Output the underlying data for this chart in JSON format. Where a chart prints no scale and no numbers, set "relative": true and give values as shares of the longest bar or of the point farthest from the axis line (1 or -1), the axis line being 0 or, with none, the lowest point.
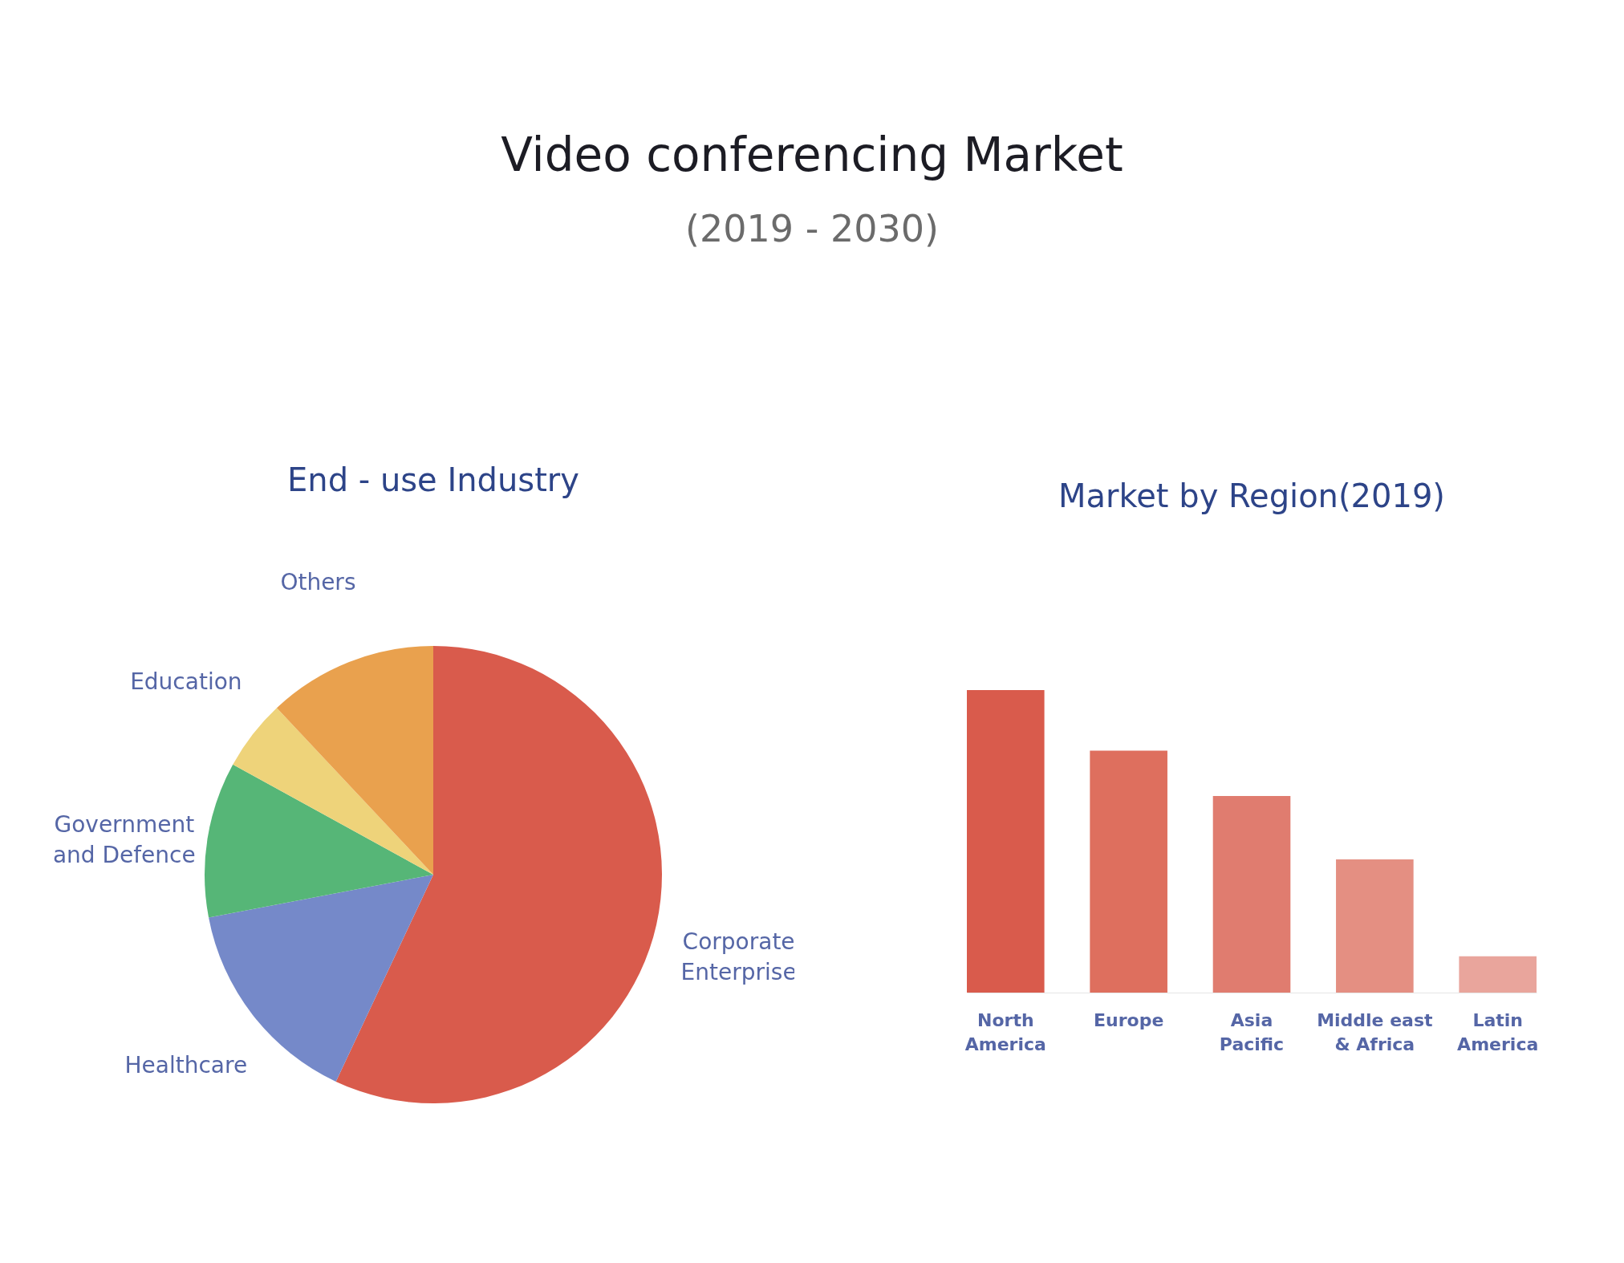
{
  "chart_data": [
    {
      "type": "other",
      "title": "Video conferencing Market",
      "subtitle": "(2019 - 2030)"
    },
    {
      "type": "pie",
      "title": "End - use Industry",
      "categories": [
        "Corporate Enterprise",
        "Healthcare",
        "Government and Defence",
        "Education",
        "Others"
      ],
      "values": [
        57,
        15,
        11,
        5,
        12
      ],
      "colors": [
        "#d95b4c",
        "#7589c9",
        "#56b677",
        "#eed37a",
        "#e9a14e"
      ],
      "legend": false
    },
    {
      "type": "bar",
      "title": "Market by Region(2019)",
      "relative": true,
      "categories": [
        "North America",
        "Europe",
        "Asia Pacific",
        "Middle east & Africa",
        "Latin America"
      ],
      "values": [
        1,
        0.8,
        0.65,
        0.44,
        0.12
      ],
      "colors": [
        "#d95b4c",
        "#de6f5e",
        "#e07c6f",
        "#e48f82",
        "#e9a59c"
      ]
    }
  ]
}
